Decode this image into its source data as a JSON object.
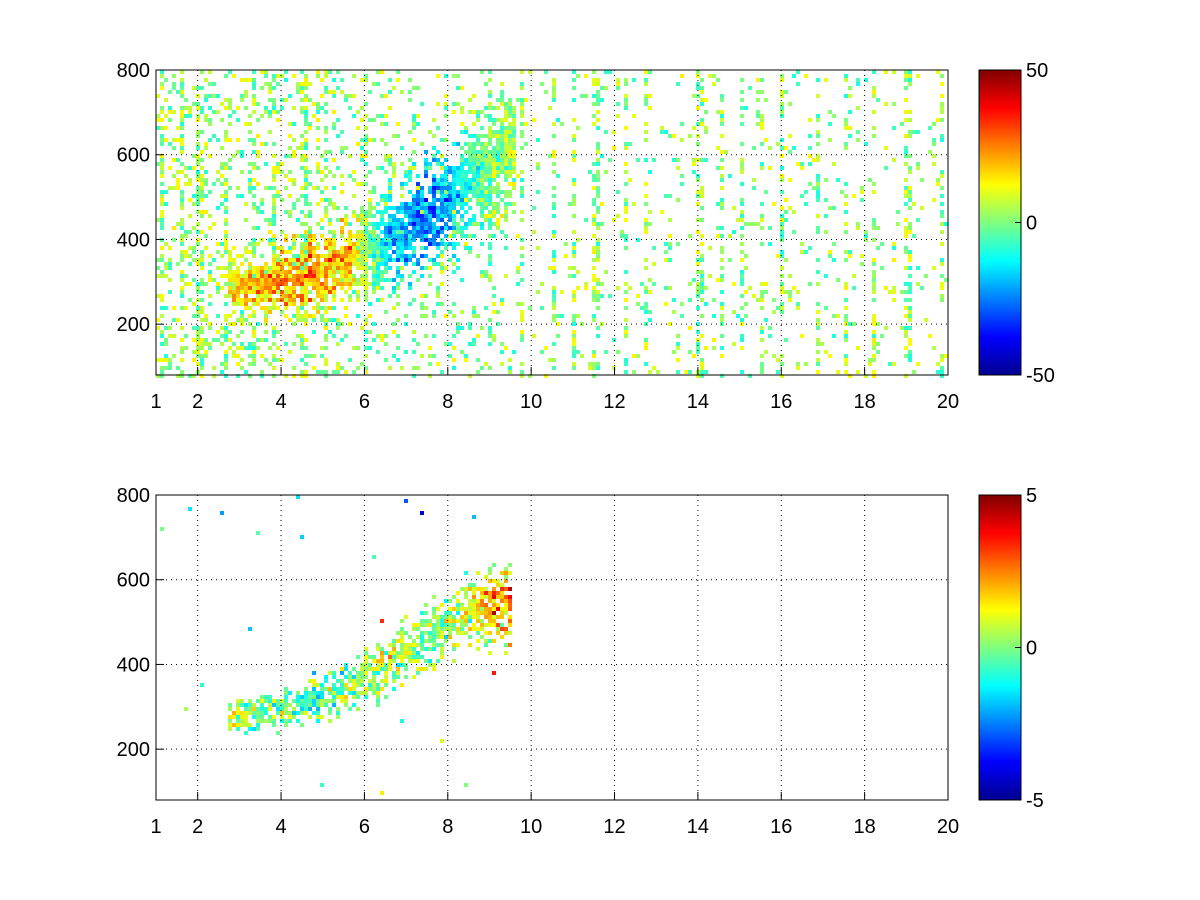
{
  "chart_data": [
    {
      "type": "heatmap",
      "title": "",
      "xlabel": "",
      "ylabel": "",
      "xlim": [
        1,
        20
      ],
      "ylim": [
        80,
        800
      ],
      "xticks": [
        1,
        2,
        4,
        6,
        8,
        10,
        12,
        14,
        16,
        18,
        20
      ],
      "yticks": [
        200,
        400,
        600,
        800
      ],
      "xticklabels": [
        "1",
        "2",
        "4",
        "6",
        "8",
        "10",
        "12",
        "14",
        "16",
        "18",
        "20"
      ],
      "yticklabels": [
        "200",
        "400",
        "600",
        "800"
      ],
      "grid": true,
      "colormap": "jet",
      "clim": [
        -50,
        50
      ],
      "colorbar_ticks": [
        -50,
        0,
        50
      ],
      "colorbar_ticklabels": [
        "-50",
        "0",
        "50"
      ],
      "background": "#ffffff",
      "features": {
        "main_band": [
          {
            "x": 2.7,
            "y_center": 290,
            "value": 15
          },
          {
            "x": 3.5,
            "y_center": 300,
            "value": 25
          },
          {
            "x": 4.5,
            "y_center": 320,
            "value": 30
          },
          {
            "x": 5.5,
            "y_center": 355,
            "value": 25
          },
          {
            "x": 6.5,
            "y_center": 400,
            "value": -20
          },
          {
            "x": 7.5,
            "y_center": 460,
            "value": -35
          },
          {
            "x": 8.5,
            "y_center": 540,
            "value": -10
          },
          {
            "x": 9.3,
            "y_center": 600,
            "value": 5
          }
        ],
        "vertical_streak_x": [
          1.1,
          1.6,
          2.0,
          2.6,
          3.3,
          3.8,
          4.5,
          5.0,
          6.0,
          9.0,
          9.7,
          10.5,
          11.0,
          11.5,
          12.2,
          12.7,
          14.0,
          14.5,
          15.0,
          15.5,
          16.0,
          16.8,
          17.5,
          18.2,
          19.0,
          19.8
        ]
      }
    },
    {
      "type": "heatmap",
      "title": "",
      "xlabel": "",
      "ylabel": "",
      "xlim": [
        1,
        20
      ],
      "ylim": [
        80,
        800
      ],
      "xticks": [
        1,
        2,
        4,
        6,
        8,
        10,
        12,
        14,
        16,
        18,
        20
      ],
      "yticks": [
        200,
        400,
        600,
        800
      ],
      "xticklabels": [
        "1",
        "2",
        "4",
        "6",
        "8",
        "10",
        "12",
        "14",
        "16",
        "18",
        "20"
      ],
      "yticklabels": [
        "200",
        "400",
        "600",
        "800"
      ],
      "grid": true,
      "colormap": "jet",
      "clim": [
        -5,
        5
      ],
      "colorbar_ticks": [
        -5,
        0,
        5
      ],
      "colorbar_ticklabels": [
        "-5",
        "0",
        "5"
      ],
      "background": "#ffffff",
      "features": {
        "main_band": [
          {
            "x": 2.7,
            "y_center": 280,
            "value": 1
          },
          {
            "x": 3.5,
            "y_center": 290,
            "value": 0
          },
          {
            "x": 4.5,
            "y_center": 310,
            "value": -1
          },
          {
            "x": 5.5,
            "y_center": 350,
            "value": 0
          },
          {
            "x": 6.5,
            "y_center": 400,
            "value": 1
          },
          {
            "x": 7.5,
            "y_center": 470,
            "value": 0
          },
          {
            "x": 8.5,
            "y_center": 530,
            "value": 1
          },
          {
            "x": 9.2,
            "y_center": 540,
            "value": 3
          }
        ]
      }
    }
  ]
}
